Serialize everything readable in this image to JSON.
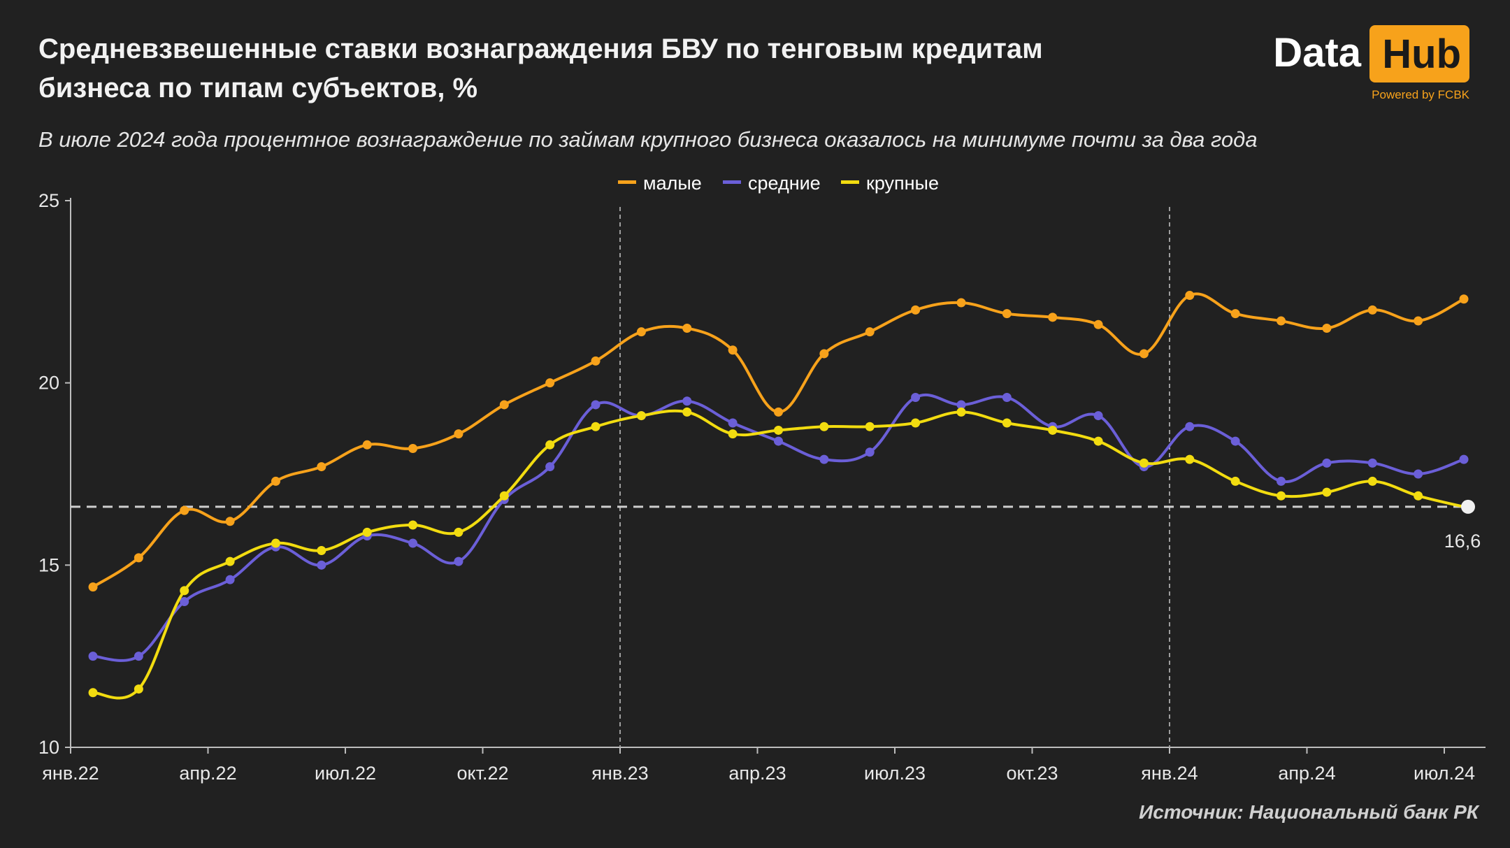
{
  "title": "Средневзвешенные ставки вознаграждения БВУ по тенговым кредитам бизнеса по типам субъектов, %",
  "subtitle": "В июле 2024 года процентное вознаграждение по займам крупного бизнеса оказалось на минимуме почти за два года",
  "source": "Источник: Национальный банк РК",
  "logo": {
    "word_a": "Data",
    "word_b": "Hub",
    "powered": "Powered by FCBK"
  },
  "colors": {
    "background": "#212121",
    "small": "#f7a21b",
    "medium": "#6b5fd8",
    "large": "#f2dc10",
    "marker": "#f0f0f0"
  },
  "chart_data": {
    "type": "line",
    "x": [
      "янв.22",
      "фев.22",
      "мар.22",
      "апр.22",
      "май.22",
      "июн.22",
      "июл.22",
      "авг.22",
      "сен.22",
      "окт.22",
      "ноя.22",
      "дек.22",
      "янв.23",
      "фев.23",
      "мар.23",
      "апр.23",
      "май.23",
      "июн.23",
      "июл.23",
      "авг.23",
      "сен.23",
      "окт.23",
      "ноя.23",
      "дек.23",
      "янв.24",
      "фев.24",
      "мар.24",
      "апр.24",
      "май.24",
      "июн.24",
      "июл.24"
    ],
    "x_tick_labels": [
      "янв.22",
      "апр.22",
      "июл.22",
      "окт.22",
      "янв.23",
      "апр.23",
      "июл.23",
      "окт.23",
      "янв.24",
      "апр.24",
      "июл.24"
    ],
    "x_tick_indices": [
      0,
      3,
      6,
      9,
      12,
      15,
      18,
      21,
      24,
      27,
      30
    ],
    "series": [
      {
        "name": "малые",
        "color": "#f7a21b",
        "values": [
          14.4,
          15.2,
          16.5,
          16.2,
          17.3,
          17.7,
          18.3,
          18.2,
          18.6,
          19.4,
          20.0,
          20.6,
          21.4,
          21.5,
          20.9,
          19.2,
          20.8,
          21.4,
          22.0,
          22.2,
          21.9,
          21.8,
          21.6,
          20.8,
          22.4,
          21.9,
          21.7,
          21.5,
          22.0,
          21.7,
          22.3
        ]
      },
      {
        "name": "средние",
        "color": "#6b5fd8",
        "values": [
          12.5,
          12.5,
          14.0,
          14.6,
          15.5,
          15.0,
          15.8,
          15.6,
          15.1,
          16.8,
          17.7,
          19.4,
          19.1,
          19.5,
          18.9,
          18.4,
          17.9,
          18.1,
          19.6,
          19.4,
          19.6,
          18.8,
          19.1,
          17.7,
          18.8,
          18.4,
          17.3,
          17.8,
          17.8,
          17.5,
          17.9
        ]
      },
      {
        "name": "крупные",
        "color": "#f2dc10",
        "values": [
          11.5,
          11.6,
          14.3,
          15.1,
          15.6,
          15.4,
          15.9,
          16.1,
          15.9,
          16.9,
          18.3,
          18.8,
          19.1,
          19.2,
          18.6,
          18.7,
          18.8,
          18.8,
          18.9,
          19.2,
          18.9,
          18.7,
          18.4,
          17.8,
          17.9,
          17.3,
          16.9,
          17.0,
          17.3,
          16.9,
          16.6
        ]
      }
    ],
    "ylim": [
      10,
      25
    ],
    "y_ticks": [
      10,
      15,
      20,
      25
    ],
    "reference_line": 16.6,
    "annotation": "16,6",
    "vertical_markers": [
      "янв.23",
      "янв.24"
    ],
    "legend_position": "top-center",
    "grid": false
  }
}
